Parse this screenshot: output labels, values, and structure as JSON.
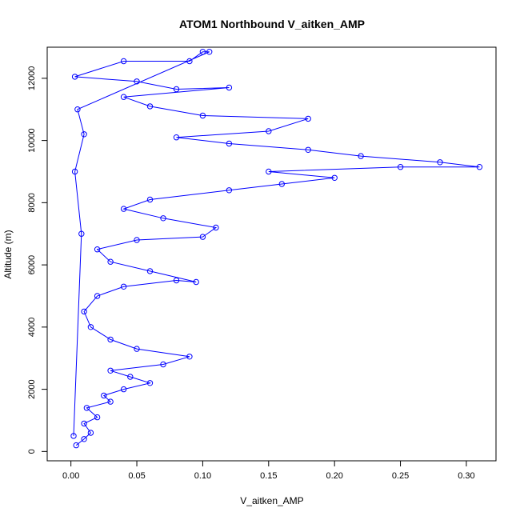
{
  "chart_data": {
    "type": "scatter",
    "title": "ATOM1 Northbound V_aitken_AMP",
    "xlabel": "V_aitken_AMP",
    "ylabel": "Altitude (m)",
    "xlim": [
      -0.018,
      0.3225
    ],
    "ylim": [
      -300,
      13000
    ],
    "x_ticks": [
      0.0,
      0.05,
      0.1,
      0.15,
      0.2,
      0.25,
      0.3
    ],
    "x_tick_labels": [
      "0.00",
      "0.05",
      "0.10",
      "0.15",
      "0.20",
      "0.25",
      "0.30"
    ],
    "y_ticks": [
      0,
      2000,
      4000,
      6000,
      8000,
      10000,
      12000
    ],
    "y_tick_labels": [
      "0",
      "2000",
      "4000",
      "6000",
      "8000",
      "10000",
      "12000"
    ],
    "grid": false,
    "legend": "none",
    "series_color": "#0000ff",
    "marker": "open-circle",
    "connected": true,
    "series": [
      {
        "points": [
          [
            0.004,
            200
          ],
          [
            0.01,
            400
          ],
          [
            0.015,
            600
          ],
          [
            0.01,
            900
          ],
          [
            0.02,
            1100
          ],
          [
            0.012,
            1400
          ],
          [
            0.03,
            1600
          ],
          [
            0.025,
            1800
          ],
          [
            0.04,
            2000
          ],
          [
            0.06,
            2200
          ],
          [
            0.045,
            2400
          ],
          [
            0.03,
            2600
          ],
          [
            0.07,
            2800
          ],
          [
            0.09,
            3050
          ],
          [
            0.05,
            3300
          ],
          [
            0.03,
            3600
          ],
          [
            0.015,
            4000
          ],
          [
            0.01,
            4500
          ],
          [
            0.02,
            5000
          ],
          [
            0.04,
            5300
          ],
          [
            0.08,
            5500
          ],
          [
            0.095,
            5450
          ],
          [
            0.06,
            5800
          ],
          [
            0.03,
            6100
          ],
          [
            0.02,
            6500
          ],
          [
            0.05,
            6800
          ],
          [
            0.1,
            6900
          ],
          [
            0.11,
            7200
          ],
          [
            0.07,
            7500
          ],
          [
            0.04,
            7800
          ],
          [
            0.06,
            8100
          ],
          [
            0.12,
            8400
          ],
          [
            0.16,
            8600
          ],
          [
            0.2,
            8800
          ],
          [
            0.15,
            9000
          ],
          [
            0.25,
            9150
          ],
          [
            0.31,
            9150
          ],
          [
            0.28,
            9300
          ],
          [
            0.22,
            9500
          ],
          [
            0.18,
            9700
          ],
          [
            0.12,
            9900
          ],
          [
            0.08,
            10100
          ],
          [
            0.15,
            10300
          ],
          [
            0.18,
            10700
          ],
          [
            0.1,
            10800
          ],
          [
            0.06,
            11100
          ],
          [
            0.04,
            11400
          ],
          [
            0.12,
            11700
          ],
          [
            0.08,
            11650
          ],
          [
            0.05,
            11900
          ],
          [
            0.003,
            12050
          ],
          [
            0.04,
            12550
          ],
          [
            0.09,
            12550
          ],
          [
            0.1,
            12850
          ],
          [
            0.105,
            12850
          ],
          [
            0.005,
            11000
          ],
          [
            0.01,
            10200
          ],
          [
            0.003,
            9000
          ],
          [
            0.008,
            7000
          ],
          [
            0.002,
            500
          ]
        ]
      }
    ]
  }
}
